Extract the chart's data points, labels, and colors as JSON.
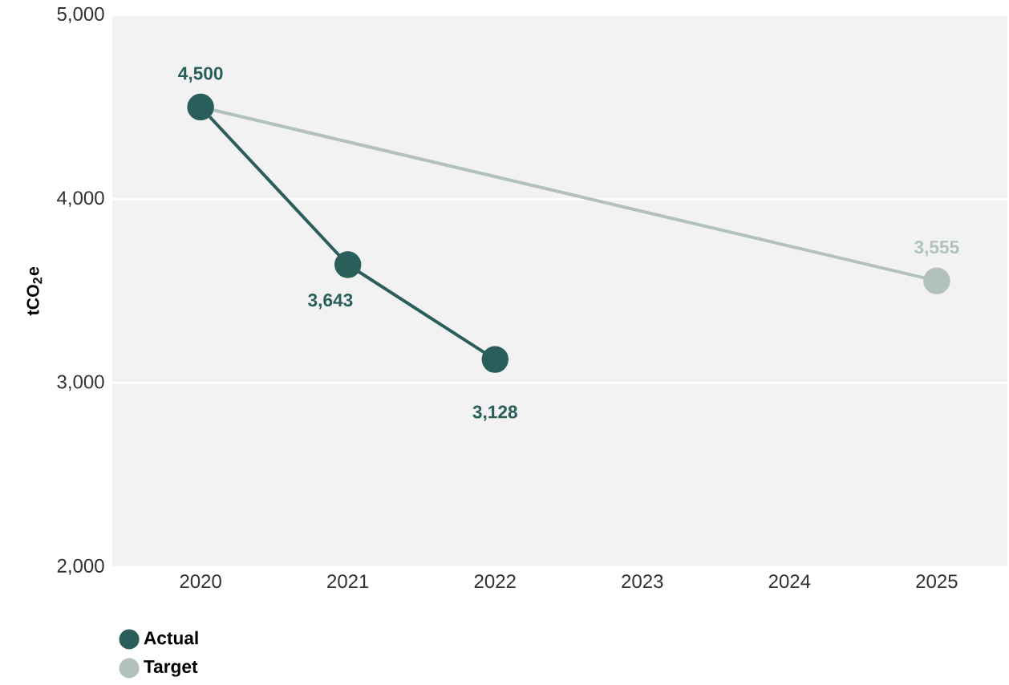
{
  "chart_data": {
    "type": "line",
    "ylabel": "tCO$_{2}$e",
    "xlim": [
      2019.4,
      2025.48
    ],
    "xticks": [
      2020,
      2021,
      2022,
      2023,
      2024,
      2025
    ],
    "ylim": [
      2000,
      5000
    ],
    "yticks": [
      {
        "value": 2000,
        "label": "2,000"
      },
      {
        "value": 3000,
        "label": "3,000"
      },
      {
        "value": 4000,
        "label": "4,000"
      },
      {
        "value": 5000,
        "label": "5,000"
      }
    ],
    "grid": "y",
    "legend": "bottom left",
    "marker": "circle",
    "line_style": "solid",
    "series": [
      {
        "name": "Actual",
        "color": "#2a5e5b",
        "x": [
          2020,
          2021,
          2022
        ],
        "values": [
          4500,
          3643,
          3128
        ],
        "value_labels": [
          "4,500",
          "3,643",
          "3,128"
        ]
      },
      {
        "name": "Target",
        "color": "#b2c2bb",
        "x": [
          2020,
          2025
        ],
        "values": [
          4500,
          3555
        ],
        "value_labels": [
          null,
          "3,555"
        ]
      }
    ]
  }
}
